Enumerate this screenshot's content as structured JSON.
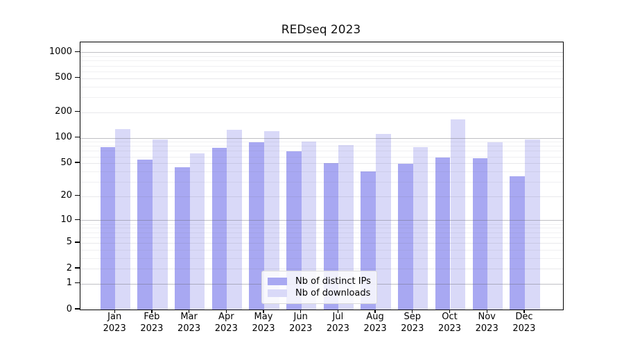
{
  "title": "REDseq 2023",
  "chart_data": {
    "type": "bar",
    "title": "REDseq 2023",
    "categories": [
      "Jan",
      "Feb",
      "Mar",
      "Apr",
      "May",
      "Jun",
      "Jul",
      "Aug",
      "Sep",
      "Oct",
      "Nov",
      "Dec"
    ],
    "category_year": "2023",
    "series": [
      {
        "name": "Nb of distinct IPs",
        "color": "#a8a8f2",
        "values": [
          77,
          55,
          45,
          76,
          89,
          69,
          50,
          40,
          49,
          58,
          57,
          35
        ]
      },
      {
        "name": "Nb of downloads",
        "color": "#d9d9f8",
        "values": [
          127,
          96,
          65,
          125,
          119,
          91,
          82,
          110,
          78,
          166,
          88,
          95
        ]
      }
    ],
    "y_axis": {
      "ticks": [
        0,
        1,
        2,
        5,
        10,
        20,
        50,
        100,
        200,
        500,
        1000
      ],
      "scale": "log10(value+1)",
      "range_top": 1300
    },
    "x_axis": {
      "tick_label_lines": 2
    },
    "grid": {
      "horizontal": true,
      "minor_log": true,
      "legend_position": "bottom-center"
    }
  },
  "legend": {
    "entry_ips": "Nb of distinct IPs",
    "entry_downloads": "Nb of downloads"
  },
  "colors": {
    "bar_dark": "#a8a8f2",
    "bar_light": "#d9d9f8",
    "grid_major": "#c3c3c8",
    "grid_minor": "#ededf0",
    "axis": "#000000"
  }
}
